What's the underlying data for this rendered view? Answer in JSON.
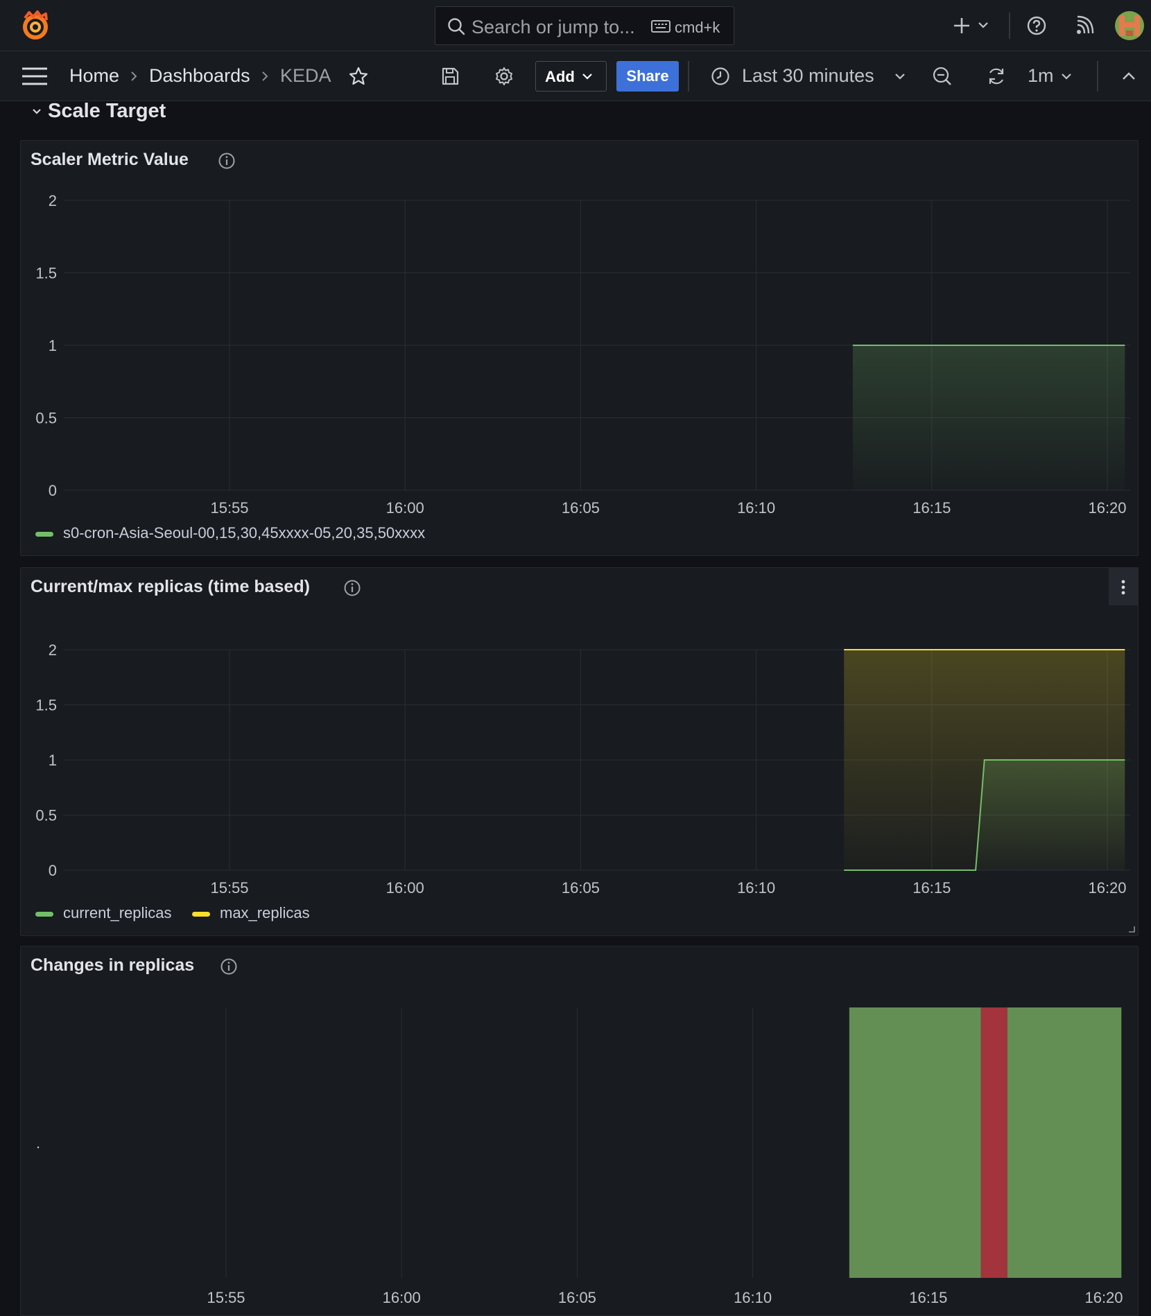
{
  "topbar": {
    "search_placeholder": "Search or jump to...",
    "shortcut": "cmd+k"
  },
  "breadcrumb": {
    "home": "Home",
    "dashboards": "Dashboards",
    "current": "KEDA"
  },
  "toolbar": {
    "add_label": "Add",
    "share_label": "Share",
    "time_range": "Last 30 minutes",
    "refresh_interval": "1m"
  },
  "row": {
    "title": "Scale Target"
  },
  "colors": {
    "green": "#73bf69",
    "yellow": "#fade2a",
    "red": "#a3333d",
    "state_green": "#638f55",
    "share": "#3d71d9"
  },
  "panels": [
    {
      "title": "Scaler Metric Value",
      "legend": [
        {
          "name": "s0-cron-Asia-Seoul-00,15,30,45xxxx-05,20,35,50xxxx",
          "color": "#73bf69"
        }
      ]
    },
    {
      "title": "Current/max replicas (time based)",
      "legend": [
        {
          "name": "current_replicas",
          "color": "#73bf69"
        },
        {
          "name": "max_replicas",
          "color": "#fade2a"
        }
      ]
    },
    {
      "title": "Changes in replicas"
    }
  ],
  "chart_data": [
    {
      "type": "area",
      "title": "Scaler Metric Value",
      "x_ticks": [
        "15:55",
        "16:00",
        "16:05",
        "16:10",
        "16:15",
        "16:20"
      ],
      "y_ticks": [
        "0",
        "0.5",
        "1",
        "1.5",
        "2"
      ],
      "ylim": [
        0,
        2
      ],
      "x_range": [
        "15:50:40",
        "16:20:30"
      ],
      "series": [
        {
          "name": "s0-cron-Asia-Seoul-00,15,30,45xxxx-05,20,35,50xxxx",
          "color": "#73bf69",
          "x": [
            "16:12:45",
            "16:20:30"
          ],
          "values": [
            1,
            1
          ]
        }
      ],
      "legend": "bottom-left",
      "grid": true
    },
    {
      "type": "area",
      "title": "Current/max replicas (time based)",
      "x_ticks": [
        "15:55",
        "16:00",
        "16:05",
        "16:10",
        "16:15",
        "16:20"
      ],
      "y_ticks": [
        "0",
        "0.5",
        "1",
        "1.5",
        "2"
      ],
      "ylim": [
        0,
        2
      ],
      "x_range": [
        "15:50:40",
        "16:20:30"
      ],
      "series": [
        {
          "name": "current_replicas",
          "color": "#73bf69",
          "x": [
            "16:12:30",
            "16:16:15",
            "16:16:30",
            "16:20:30"
          ],
          "values": [
            0,
            0,
            1,
            1
          ]
        },
        {
          "name": "max_replicas",
          "color": "#fade2a",
          "x": [
            "16:12:30",
            "16:20:30"
          ],
          "values": [
            2,
            2
          ]
        }
      ],
      "legend": "bottom-left",
      "grid": true
    },
    {
      "type": "state-timeline",
      "title": "Changes in replicas",
      "x_ticks": [
        "15:55",
        "16:00",
        "16:05",
        "16:10",
        "16:15",
        "16:20"
      ],
      "x_range": [
        "15:50:40",
        "16:20:30"
      ],
      "row_label": ".",
      "segments": [
        {
          "from": "16:12:45",
          "to": "16:16:30",
          "color": "#638f55"
        },
        {
          "from": "16:16:30",
          "to": "16:17:15",
          "color": "#a3333d"
        },
        {
          "from": "16:17:15",
          "to": "16:20:30",
          "color": "#638f55"
        }
      ]
    }
  ]
}
